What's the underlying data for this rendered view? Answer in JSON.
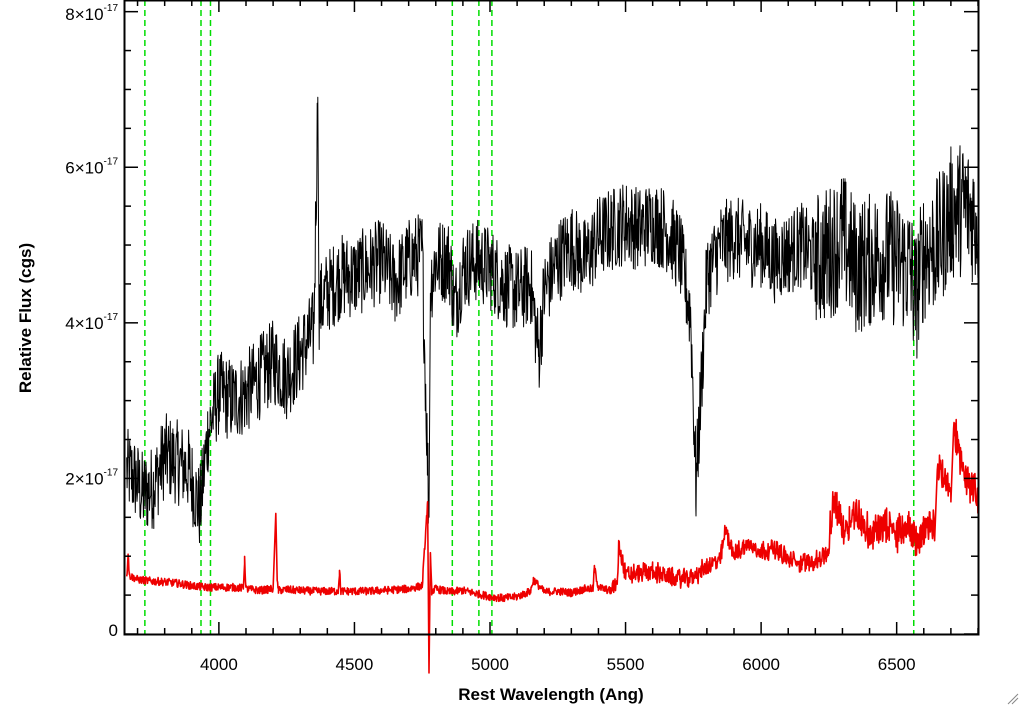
{
  "chart_data": {
    "type": "line",
    "xlabel": "Rest Wavelength (Ang)",
    "ylabel": "Relative Flux (cgs)",
    "xlim": [
      3650,
      6800
    ],
    "ylim": [
      0,
      8.15e-17
    ],
    "x_ticks": [
      4000,
      4500,
      5000,
      5500,
      6000,
      6500
    ],
    "y_ticks": [
      {
        "value": 0,
        "mantissa": "0",
        "exponent": ""
      },
      {
        "value": 2e-17,
        "mantissa": "2×10",
        "exponent": "-17"
      },
      {
        "value": 4e-17,
        "mantissa": "4×10",
        "exponent": "-17"
      },
      {
        "value": 6e-17,
        "mantissa": "6×10",
        "exponent": "-17"
      },
      {
        "value": 8e-17,
        "mantissa": "8×10",
        "exponent": "-17"
      }
    ],
    "vertical_lines": {
      "color": "#00dd00",
      "style": "dashed",
      "x": [
        3727,
        3934,
        3969,
        4861,
        4959,
        5007,
        6563
      ]
    },
    "series": [
      {
        "color": "#000000",
        "x": [
          3660,
          3690,
          3720,
          3760,
          3800,
          3850,
          3890,
          3930,
          3960,
          4000,
          4050,
          4100,
          4150,
          4200,
          4250,
          4300,
          4350,
          4365,
          4370,
          4400,
          4450,
          4500,
          4550,
          4600,
          4650,
          4700,
          4750,
          4775,
          4780,
          4800,
          4850,
          4870,
          4900,
          4950,
          5000,
          5050,
          5100,
          5150,
          5180,
          5200,
          5250,
          5300,
          5350,
          5400,
          5450,
          5500,
          5550,
          5600,
          5650,
          5700,
          5740,
          5760,
          5800,
          5850,
          5900,
          5950,
          6000,
          6050,
          6100,
          6150,
          6200,
          6250,
          6300,
          6350,
          6400,
          6450,
          6500,
          6550,
          6570,
          6600,
          6650,
          6700,
          6750,
          6800
        ],
        "y": [
          2.1e-17,
          2e-17,
          1.8e-17,
          1.9e-17,
          2.3e-17,
          2.2e-17,
          2.1e-17,
          1.6e-17,
          2.6e-17,
          3.1e-17,
          3e-17,
          3.1e-17,
          3.3e-17,
          3.5e-17,
          3.3e-17,
          3.6e-17,
          3.9e-17,
          6.9e-17,
          4.2e-17,
          4.4e-17,
          4.6e-17,
          4.6e-17,
          4.7e-17,
          4.8e-17,
          4.5e-17,
          4.8e-17,
          4.9e-17,
          1.5e-17,
          4.5e-17,
          4.8e-17,
          4.8e-17,
          4.2e-17,
          4.7e-17,
          4.8e-17,
          4.7e-17,
          4.5e-17,
          4.4e-17,
          4.5e-17,
          3.6e-17,
          4.4e-17,
          4.8e-17,
          5e-17,
          4.8e-17,
          5.1e-17,
          5.2e-17,
          5.3e-17,
          5.2e-17,
          5.3e-17,
          5.2e-17,
          4.9e-17,
          4.1e-17,
          1.9e-17,
          4.6e-17,
          5e-17,
          5.1e-17,
          5e-17,
          5e-17,
          4.8e-17,
          4.9e-17,
          5e-17,
          4.8e-17,
          4.9e-17,
          5.1e-17,
          4.7e-17,
          4.8e-17,
          4.9e-17,
          4.8e-17,
          4.7e-17,
          4.3e-17,
          4.9e-17,
          5e-17,
          5.4e-17,
          5.5e-17,
          5.3e-17
        ]
      },
      {
        "color": "#ee0000",
        "x": [
          3660,
          3665,
          3670,
          3700,
          3750,
          3800,
          3850,
          3900,
          3950,
          4000,
          4050,
          4090,
          4095,
          4100,
          4150,
          4200,
          4210,
          4215,
          4220,
          4250,
          4300,
          4350,
          4400,
          4440,
          4445,
          4450,
          4500,
          4550,
          4600,
          4650,
          4700,
          4750,
          4770,
          4775,
          4780,
          4785,
          4800,
          4850,
          4900,
          4950,
          5000,
          5050,
          5100,
          5150,
          5160,
          5200,
          5250,
          5300,
          5350,
          5380,
          5385,
          5400,
          5450,
          5470,
          5475,
          5500,
          5550,
          5600,
          5650,
          5700,
          5750,
          5800,
          5850,
          5870,
          5900,
          5950,
          6000,
          6050,
          6100,
          6150,
          6200,
          6250,
          6270,
          6300,
          6350,
          6400,
          6450,
          6500,
          6550,
          6570,
          6600,
          6640,
          6650,
          6700,
          6710,
          6750,
          6800
        ],
        "y": [
          7e-18,
          1.05e-17,
          7.5e-18,
          7e-18,
          6.8e-18,
          6.7e-18,
          6.5e-18,
          6.2e-18,
          6e-18,
          6e-18,
          6e-18,
          5.9e-18,
          9.5e-18,
          5.8e-18,
          5.6e-18,
          5.8e-18,
          1.55e-17,
          6.5e-18,
          5.6e-18,
          5.7e-18,
          5.6e-18,
          5.5e-18,
          5.5e-18,
          5.5e-18,
          8e-18,
          5.5e-18,
          5.5e-18,
          5.5e-18,
          5.6e-18,
          5.7e-18,
          5.8e-18,
          6.2e-18,
          1.7e-17,
          -5e-18,
          1e-17,
          5.5e-18,
          5.8e-18,
          5.4e-18,
          5.6e-18,
          5.2e-18,
          4.8e-18,
          4.6e-18,
          4.8e-18,
          5.5e-18,
          7e-18,
          5.4e-18,
          5.5e-18,
          5.3e-18,
          5.8e-18,
          5.8e-18,
          8.5e-18,
          6e-18,
          5.5e-18,
          6e-18,
          1.1e-17,
          7e-18,
          7.2e-18,
          7.5e-18,
          6.8e-18,
          6.5e-18,
          6.8e-18,
          8e-18,
          9e-18,
          1.3e-17,
          9.5e-18,
          1.1e-17,
          1e-17,
          1.05e-17,
          9e-18,
          8.5e-18,
          8.8e-18,
          1e-17,
          1.6e-17,
          1.2e-17,
          1.4e-17,
          1.1e-17,
          1.2e-17,
          1.15e-17,
          1.2e-17,
          1.05e-17,
          1.15e-17,
          1.2e-17,
          2e-17,
          1.7e-17,
          2.5e-17,
          1.9e-17,
          1.6e-17
        ]
      }
    ]
  }
}
